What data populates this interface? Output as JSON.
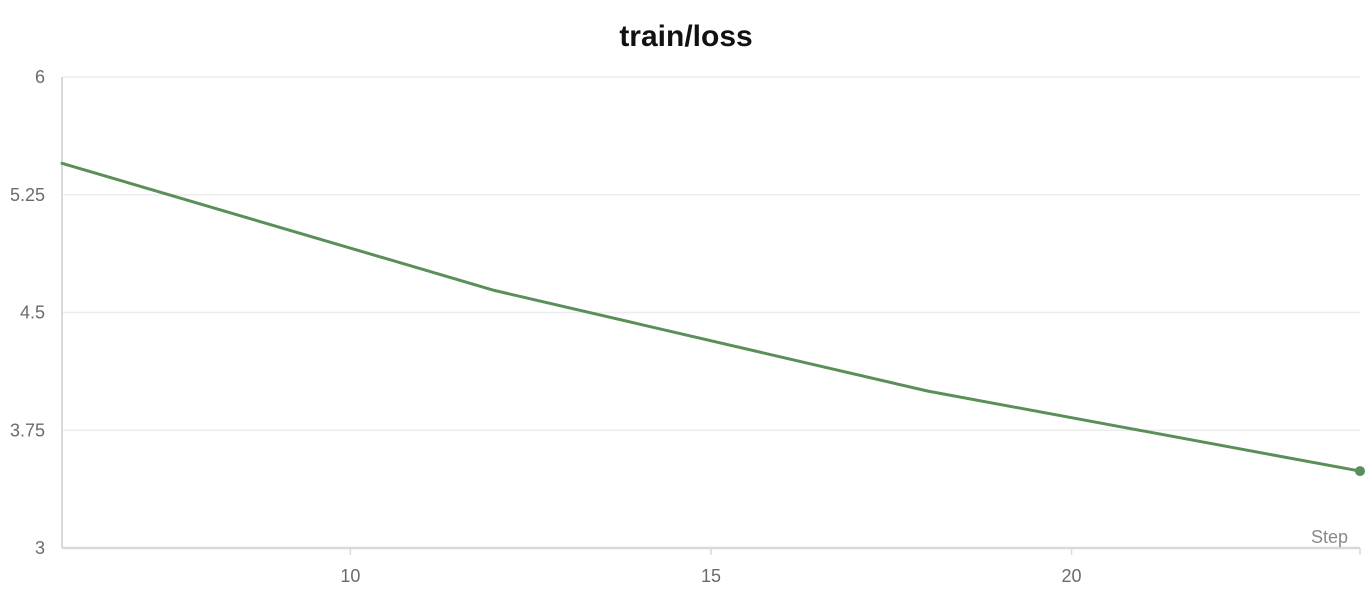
{
  "chart_data": {
    "type": "line",
    "title": "train/loss",
    "xlabel": "Step",
    "ylabel": "",
    "xlim": [
      6,
      24
    ],
    "ylim": [
      3,
      6
    ],
    "x_ticks": [
      10,
      15,
      20
    ],
    "y_ticks": [
      3,
      3.75,
      4.5,
      5.25,
      6
    ],
    "y_tick_labels": [
      "3",
      "3.75",
      "4.5",
      "5.25",
      "6"
    ],
    "grid": true,
    "series": [
      {
        "x": [
          6,
          12,
          18,
          24
        ],
        "y": [
          5.45,
          4.64,
          4.0,
          3.49
        ],
        "color": "#5a8f5a",
        "end_marker": true
      }
    ]
  }
}
